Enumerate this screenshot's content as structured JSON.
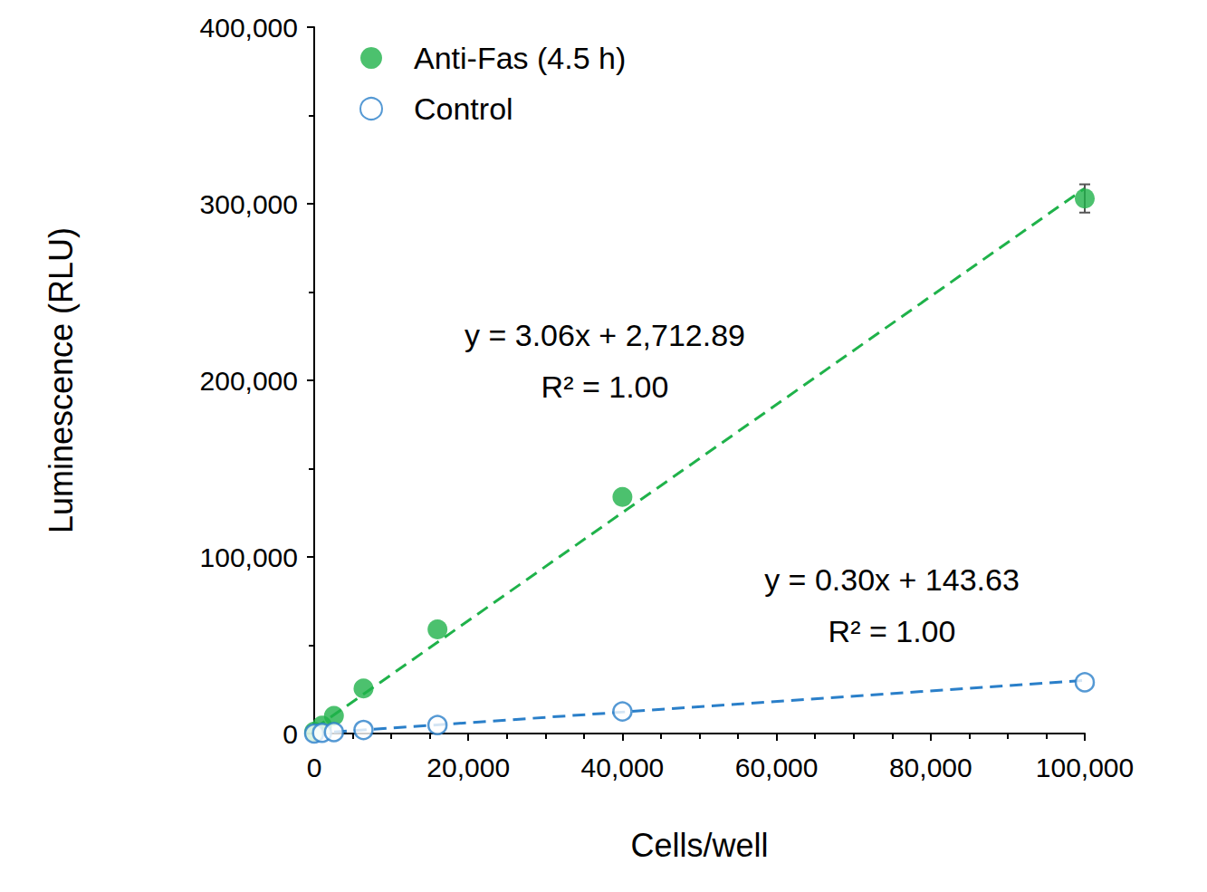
{
  "chart_data": {
    "type": "scatter",
    "x_label": "Cells/well",
    "y_label": "Luminescence (RLU)",
    "x": [
      0,
      1024,
      2560,
      6400,
      16000,
      40000,
      100000
    ],
    "series": [
      {
        "name": "Anti-Fas (4.5 h)",
        "color": "#1fb24a",
        "marker": "circle",
        "values": [
          1000,
          4500,
          10000,
          25500,
          59000,
          134000,
          303000
        ],
        "errors": [
          null,
          null,
          null,
          null,
          null,
          null,
          8000
        ],
        "trendline": {
          "slope": 3.06,
          "intercept": 2712.89,
          "line_style": "dashed",
          "equation_label": "y = 3.06x + 2,712.89",
          "r2_label": "R² = 1.00"
        }
      },
      {
        "name": "Control",
        "color": "#2a7fc9",
        "marker": "circle_open",
        "values": [
          0,
          400,
          800,
          2000,
          4800,
          12500,
          29000
        ],
        "trendline": {
          "slope": 0.3,
          "intercept": 143.63,
          "line_style": "dashed",
          "equation_label": "y = 0.30x + 143.63",
          "r2_label": "R² = 1.00"
        }
      }
    ],
    "xlim": [
      0,
      100000
    ],
    "xticks": [
      0,
      {
        "value": 20000,
        "label": "20,000"
      },
      {
        "value": 40000,
        "label": "40,000"
      },
      {
        "value": 60000,
        "label": "60,000"
      },
      {
        "value": 80000,
        "label": "80,000"
      },
      {
        "value": 100000,
        "label": "100,000"
      }
    ],
    "ylim": [
      0,
      400000
    ],
    "yticks": [
      0,
      {
        "value": 100000,
        "label": "100,000"
      },
      {
        "value": 200000,
        "label": "200,000"
      },
      {
        "value": 300000,
        "label": "300,000"
      },
      {
        "value": 400000,
        "label": "400,000"
      }
    ],
    "grid": false,
    "legend": "top-left"
  }
}
